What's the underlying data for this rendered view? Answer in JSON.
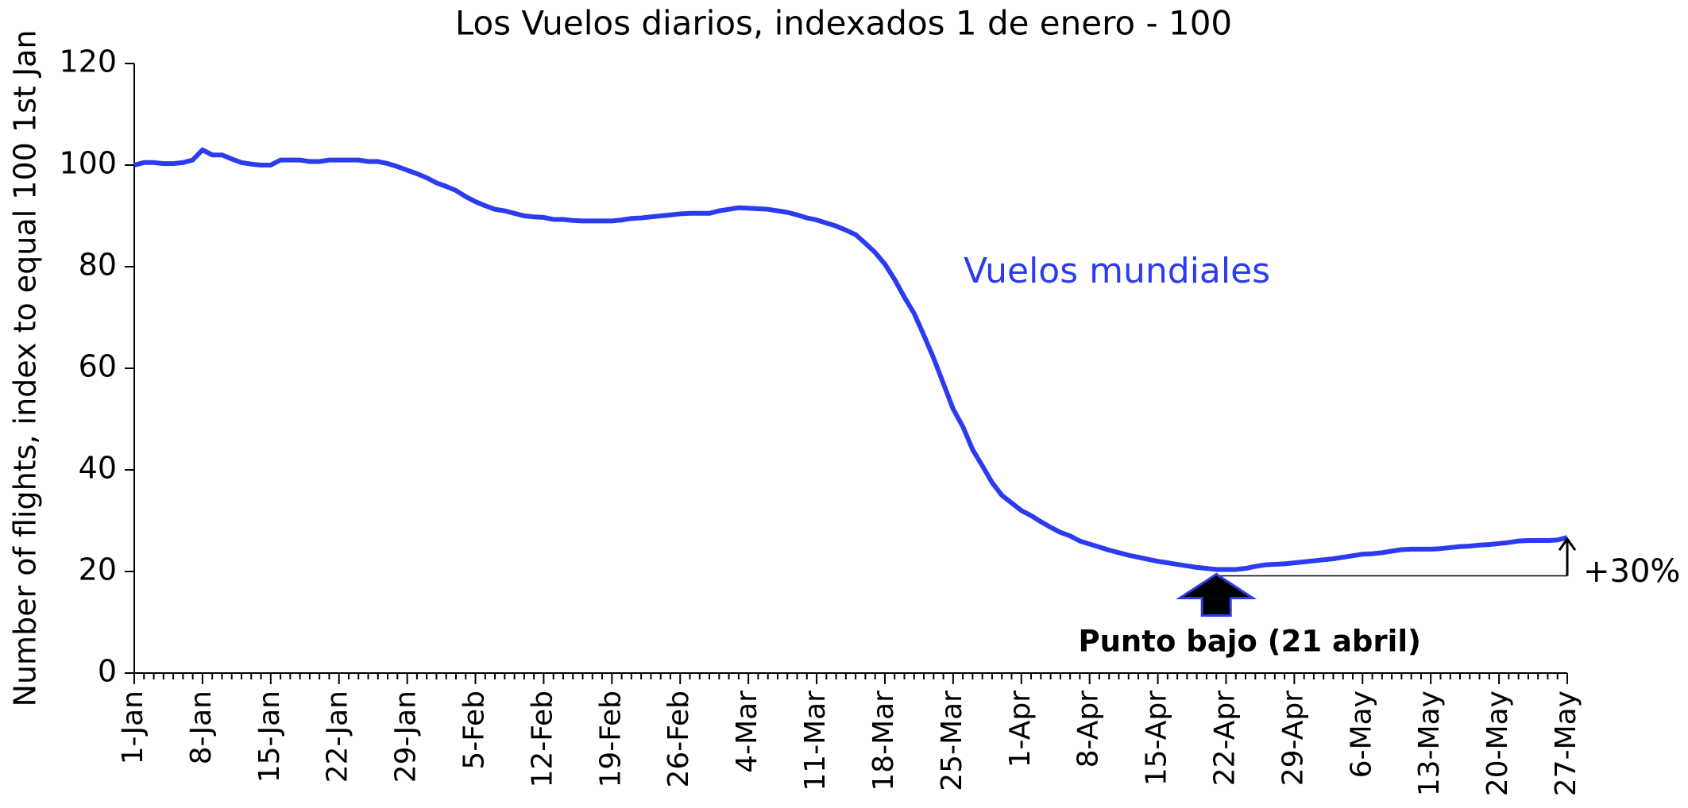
{
  "chart_data": {
    "type": "line",
    "title": "Los Vuelos diarios, indexados 1 de enero - 100",
    "y_label": "Number of flights, index to equal 100 1st Jan",
    "categories": [
      "1-Jan",
      null,
      null,
      null,
      null,
      null,
      null,
      "8-Jan",
      null,
      null,
      null,
      null,
      null,
      null,
      "15-Jan",
      null,
      null,
      null,
      null,
      null,
      null,
      "22-Jan",
      null,
      null,
      null,
      null,
      null,
      null,
      "29-Jan",
      null,
      null,
      null,
      null,
      null,
      null,
      "5-Feb",
      null,
      null,
      null,
      null,
      null,
      null,
      "12-Feb",
      null,
      null,
      null,
      null,
      null,
      null,
      "19-Feb",
      null,
      null,
      null,
      null,
      null,
      null,
      "26-Feb",
      null,
      null,
      null,
      null,
      null,
      null,
      "4-Mar",
      null,
      null,
      null,
      null,
      null,
      null,
      "11-Mar",
      null,
      null,
      null,
      null,
      null,
      null,
      "18-Mar",
      null,
      null,
      null,
      null,
      null,
      null,
      "25-Mar",
      null,
      null,
      null,
      null,
      null,
      null,
      "1-Apr",
      null,
      null,
      null,
      null,
      null,
      null,
      "8-Apr",
      null,
      null,
      null,
      null,
      null,
      null,
      "15-Apr",
      null,
      null,
      null,
      null,
      null,
      null,
      "22-Apr",
      null,
      null,
      null,
      null,
      null,
      null,
      "29-Apr",
      null,
      null,
      null,
      null,
      null,
      null,
      "6-May",
      null,
      null,
      null,
      null,
      null,
      null,
      "13-May",
      null,
      null,
      null,
      null,
      null,
      null,
      "20-May",
      null,
      null,
      null,
      null,
      null,
      null,
      "27-May"
    ],
    "series": [
      {
        "name": "Vuelos mundiales",
        "color": "#2b3cf0",
        "values": [
          100,
          100.5,
          100.5,
          100.3,
          100.3,
          100.5,
          101,
          103,
          102,
          102,
          101.2,
          100.5,
          100.2,
          100,
          100,
          101,
          101,
          101,
          100.7,
          100.7,
          101,
          101,
          101,
          101,
          100.7,
          100.7,
          100.3,
          99.7,
          99,
          98.3,
          97.5,
          96.5,
          95.8,
          95,
          93.8,
          92.8,
          92,
          91.3,
          91,
          90.5,
          90,
          89.8,
          89.7,
          89.3,
          89.3,
          89.1,
          89,
          89,
          89,
          89,
          89.2,
          89.5,
          89.6,
          89.8,
          90,
          90.2,
          90.4,
          90.5,
          90.5,
          90.5,
          91,
          91.3,
          91.6,
          91.5,
          91.4,
          91.3,
          91,
          90.7,
          90.2,
          89.6,
          89.2,
          88.6,
          88,
          87.2,
          86.3,
          84.6,
          82.8,
          80.5,
          77.5,
          74,
          70.8,
          66.5,
          62,
          57,
          52,
          48.5,
          44,
          40.8,
          37.5,
          35,
          33.5,
          32,
          31,
          29.8,
          28.7,
          27.7,
          27,
          26,
          25.4,
          24.8,
          24.2,
          23.7,
          23.2,
          22.8,
          22.4,
          22,
          21.7,
          21.4,
          21.1,
          20.8,
          20.6,
          20.4,
          20.4,
          20.4,
          20.6,
          21,
          21.3,
          21.4,
          21.5,
          21.7,
          21.9,
          22.1,
          22.3,
          22.5,
          22.8,
          23.1,
          23.4,
          23.5,
          23.7,
          24,
          24.3,
          24.4,
          24.4,
          24.4,
          24.5,
          24.7,
          24.9,
          25,
          25.2,
          25.3,
          25.5,
          25.7,
          26,
          26.1,
          26.1,
          26.1,
          26.2,
          26.7
        ]
      }
    ],
    "ylim": [
      0,
      120
    ],
    "yticks": [
      0,
      20,
      40,
      60,
      80,
      100,
      120
    ],
    "annotations": [
      "Punto bajo (21 abril)",
      "+30%"
    ]
  }
}
